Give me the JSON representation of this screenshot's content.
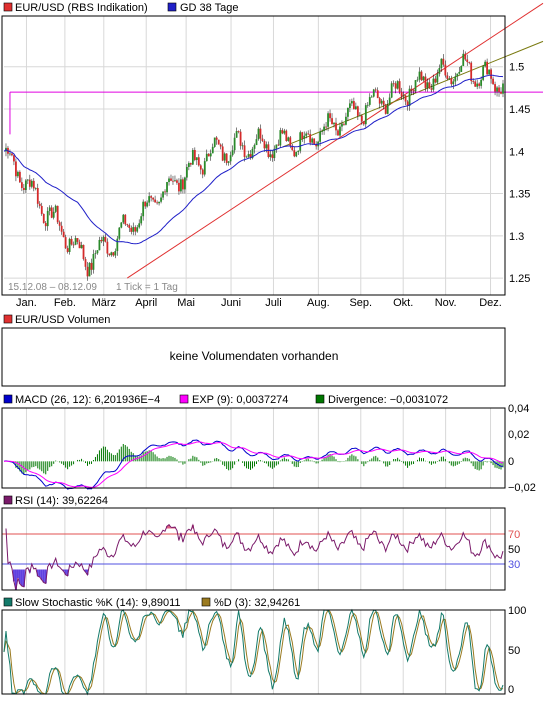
{
  "colors": {
    "background": "#ffffff",
    "frame": "#000000",
    "grid": "#d8d8d8",
    "candle_up": "#2a8a2a",
    "candle_down": "#d42a2a",
    "sma": "#2020c8",
    "trend_red": "#e03030",
    "trend_olive": "#7a7a10",
    "level_magenta": "#e000e0",
    "macd": "#0000cc",
    "signal": "#ff00ff",
    "divergence": "#007700",
    "rsi": "#7a1a6a",
    "rsi_over": "#e06080",
    "rsi_under": "#6040e0",
    "rsi_hi_line": "#e05050",
    "rsi_lo_line": "#5050e0",
    "stoch_k": "#137a6a",
    "stoch_d": "#9a7a20"
  },
  "chart_data": [
    {
      "type": "candlestick",
      "legend": [
        {
          "label": "EUR/USD (RBS Indikation)",
          "color": "#e03030"
        },
        {
          "label": "GD 38 Tage",
          "color": "#2020c8"
        }
      ],
      "date_range": "15.12.08 – 08.12.09",
      "tick_info": "1 Tick = 1 Tag",
      "x_tick_labels": [
        "Jan.",
        "Feb.",
        "März",
        "April",
        "Mai",
        "Juni",
        "Juli",
        "Aug.",
        "Sep.",
        "Okt.",
        "Nov.",
        "Dez."
      ],
      "y_ticks": [
        1.25,
        1.3,
        1.35,
        1.4,
        1.45,
        1.5
      ],
      "ylim": [
        1.23,
        1.56
      ],
      "closes_monthly": {
        "months": [
          "Dec",
          "Jan",
          "Feb",
          "Mar",
          "Apr",
          "May",
          "Jun",
          "Jul",
          "Aug",
          "Sep",
          "Oct",
          "Nov",
          "Dec"
        ],
        "values": [
          1.4,
          1.33,
          1.27,
          1.31,
          1.36,
          1.4,
          1.41,
          1.41,
          1.43,
          1.46,
          1.48,
          1.5,
          1.48
        ]
      },
      "sma_name": "GD 38 Tage",
      "horizontal_level": 1.47
    },
    {
      "type": "bar",
      "legend": [
        {
          "label": "EUR/USD Volumen",
          "color": "#e03030"
        }
      ],
      "message": "keine Volumendaten vorhanden"
    },
    {
      "type": "line",
      "legend": [
        {
          "label": "MACD (26, 12): 6,201936E−4",
          "color": "#0000cc"
        },
        {
          "label": "EXP (9): 0,0037274",
          "color": "#ff00ff"
        },
        {
          "label": "Divergence: −0,0031072",
          "color": "#007700"
        }
      ],
      "y_ticks": [
        "0,04",
        "0,02",
        "0",
        "−0,02"
      ],
      "ylim": [
        -0.02,
        0.04
      ]
    },
    {
      "type": "line",
      "legend": [
        {
          "label": "RSI (14): 39,62264",
          "color": "#7a1a6a"
        }
      ],
      "y_ticks": [
        "70",
        "50",
        "30"
      ],
      "levels": [
        70,
        30
      ],
      "ylim": [
        10,
        90
      ]
    },
    {
      "type": "line",
      "legend": [
        {
          "label": "Slow Stochastic %K (14): 9,89011",
          "color": "#137a6a"
        },
        {
          "label": "%D (3): 32,94261",
          "color": "#9a7a20"
        }
      ],
      "y_ticks": [
        "100",
        "50",
        "0"
      ],
      "ylim": [
        0,
        100
      ]
    }
  ]
}
